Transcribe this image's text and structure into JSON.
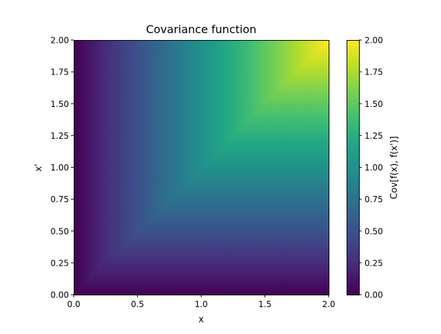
{
  "chart_data": {
    "type": "heatmap",
    "title": "Covariance function",
    "xlabel": "x",
    "ylabel": "x'",
    "xlim": [
      0,
      2
    ],
    "ylim": [
      0,
      2
    ],
    "x_ticks": [
      "0.0",
      "0.5",
      "1.0",
      "1.5",
      "2.0"
    ],
    "y_ticks": [
      "0.00",
      "0.25",
      "0.50",
      "0.75",
      "1.00",
      "1.25",
      "1.50",
      "1.75",
      "2.00"
    ],
    "function": "Cov[f(x), f(x')] = min(x, x')",
    "grid_resolution": 100,
    "colormap": "viridis",
    "colorbar": {
      "label": "Cov[f(x), f(x')]",
      "range": [
        0,
        2
      ],
      "ticks": [
        "0.00",
        "0.25",
        "0.50",
        "0.75",
        "1.00",
        "1.25",
        "1.50",
        "1.75",
        "2.00"
      ]
    },
    "grid": false
  }
}
